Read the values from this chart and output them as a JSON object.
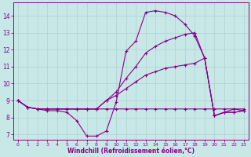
{
  "xlabel": "Windchill (Refroidissement éolien,°C)",
  "bg_color": "#c8e8e8",
  "line_color": "#880088",
  "grid_color": "#b0d0d0",
  "xlim": [
    -0.5,
    23.5
  ],
  "ylim": [
    6.7,
    14.8
  ],
  "xticks": [
    0,
    1,
    2,
    3,
    4,
    5,
    6,
    7,
    8,
    9,
    10,
    11,
    12,
    13,
    14,
    15,
    16,
    17,
    18,
    19,
    20,
    21,
    22,
    23
  ],
  "yticks": [
    7,
    8,
    9,
    10,
    11,
    12,
    13,
    14
  ],
  "lines": [
    {
      "x": [
        0,
        1,
        2,
        3,
        4,
        5,
        6,
        7,
        8,
        9,
        10,
        11,
        12,
        13,
        14,
        15,
        16,
        17,
        18,
        19,
        20,
        21,
        22,
        23
      ],
      "y": [
        9.0,
        8.6,
        8.5,
        8.4,
        8.4,
        8.3,
        7.8,
        6.9,
        6.9,
        7.2,
        8.9,
        11.9,
        12.5,
        14.2,
        14.3,
        14.2,
        14.0,
        13.5,
        12.8,
        11.5,
        8.1,
        8.3,
        8.5,
        8.4
      ]
    },
    {
      "x": [
        0,
        1,
        2,
        3,
        4,
        5,
        6,
        7,
        8,
        9,
        10,
        11,
        12,
        13,
        14,
        15,
        16,
        17,
        18,
        19,
        20,
        21,
        22,
        23
      ],
      "y": [
        9.0,
        8.6,
        8.5,
        8.5,
        8.5,
        8.5,
        8.5,
        8.5,
        8.5,
        8.5,
        8.5,
        8.5,
        8.5,
        8.5,
        8.5,
        8.5,
        8.5,
        8.5,
        8.5,
        8.5,
        8.5,
        8.5,
        8.5,
        8.5
      ]
    },
    {
      "x": [
        0,
        1,
        2,
        3,
        4,
        5,
        6,
        7,
        8,
        9,
        10,
        11,
        12,
        13,
        14,
        15,
        16,
        17,
        18,
        19,
        20,
        21,
        22,
        23
      ],
      "y": [
        9.0,
        8.6,
        8.5,
        8.5,
        8.5,
        8.5,
        8.5,
        8.5,
        8.5,
        9.0,
        9.5,
        10.3,
        11.0,
        11.8,
        12.2,
        12.5,
        12.7,
        12.9,
        13.0,
        11.5,
        8.1,
        8.3,
        8.3,
        8.4
      ]
    },
    {
      "x": [
        0,
        1,
        2,
        3,
        4,
        5,
        6,
        7,
        8,
        9,
        10,
        11,
        12,
        13,
        14,
        15,
        16,
        17,
        18,
        19,
        20,
        21,
        22,
        23
      ],
      "y": [
        9.0,
        8.6,
        8.5,
        8.5,
        8.5,
        8.5,
        8.5,
        8.5,
        8.5,
        9.0,
        9.3,
        9.7,
        10.1,
        10.5,
        10.7,
        10.9,
        11.0,
        11.1,
        11.2,
        11.5,
        8.1,
        8.3,
        8.3,
        8.4
      ]
    }
  ]
}
